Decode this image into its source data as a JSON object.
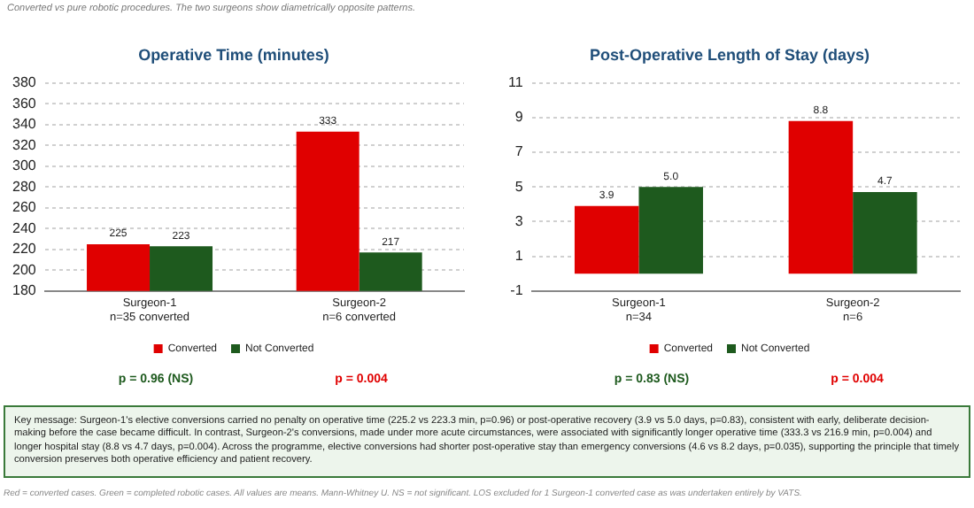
{
  "chart_data": [
    {
      "type": "bar",
      "title": "Operative Time (minutes)",
      "categories": [
        "Surgeon-1\nn=35 converted",
        "Surgeon-2\nn=6 converted"
      ],
      "series": [
        {
          "name": "Converted",
          "color": "#e00000",
          "values": [
            225,
            333
          ]
        },
        {
          "name": "Not Converted",
          "color": "#1e5a1e",
          "values": [
            223,
            217
          ]
        }
      ],
      "ylim": [
        180,
        380
      ],
      "yticks": [
        180,
        200,
        220,
        240,
        260,
        280,
        300,
        320,
        340,
        360,
        380
      ],
      "grid": "y",
      "legend": "bottom",
      "data_labels": true,
      "annotations": [
        "Converted vs pure robotic procedures. The two surgeons show diametrically opposite patterns.",
        "p = 0.96 (NS)",
        "p = 0.004"
      ]
    },
    {
      "type": "bar",
      "title": "Post-Operative Length of Stay (days)",
      "categories": [
        "Surgeon-1\nn=34",
        "Surgeon-2\nn=6"
      ],
      "series": [
        {
          "name": "Converted",
          "color": "#e00000",
          "values": [
            3.9,
            8.8
          ],
          "value_labels": [
            "3.9",
            "8.8"
          ]
        },
        {
          "name": "Not Converted",
          "color": "#1e5a1e",
          "values": [
            5.0,
            4.7
          ],
          "value_labels": [
            "5.0",
            "4.7"
          ]
        }
      ],
      "ylim": [
        -1,
        11
      ],
      "yticks": [
        -1,
        1,
        3,
        5,
        7,
        9,
        11
      ],
      "grid": "y",
      "legend": "bottom",
      "annotations": [
        "p = 0.83 (NS)",
        "p = 0.004",
        "Key message:  Surgeon-1's elective conversions carried no penalty on operative time (225.2 vs 223.3 min, p=0.96) or post-operative recovery (3.9 vs 5.0 days, p=0.83), consistent with early, deliberate decision-making before the case became difficult. In contrast, Surgeon-2's conversions, made under more acute circumstances, were associated with significantly longer operative time (333.3 vs 216.9 min, p=0.004) and longer hospital stay (8.8 vs 4.7 days, p=0.004). Across the programme, elective conversions had shorter post-operative stay than emergency conversions (4.6 vs 8.2 days, p=0.035), supporting the principle that timely conversion preserves both operative efficiency and patient recovery.",
        "Red = converted cases. Green = completed robotic cases. All values are means. Mann-Whitney U. NS = not significant. LOS excluded for 1 Surgeon-1 converted case as was undertaken entirely by VATS."
      ]
    }
  ]
}
